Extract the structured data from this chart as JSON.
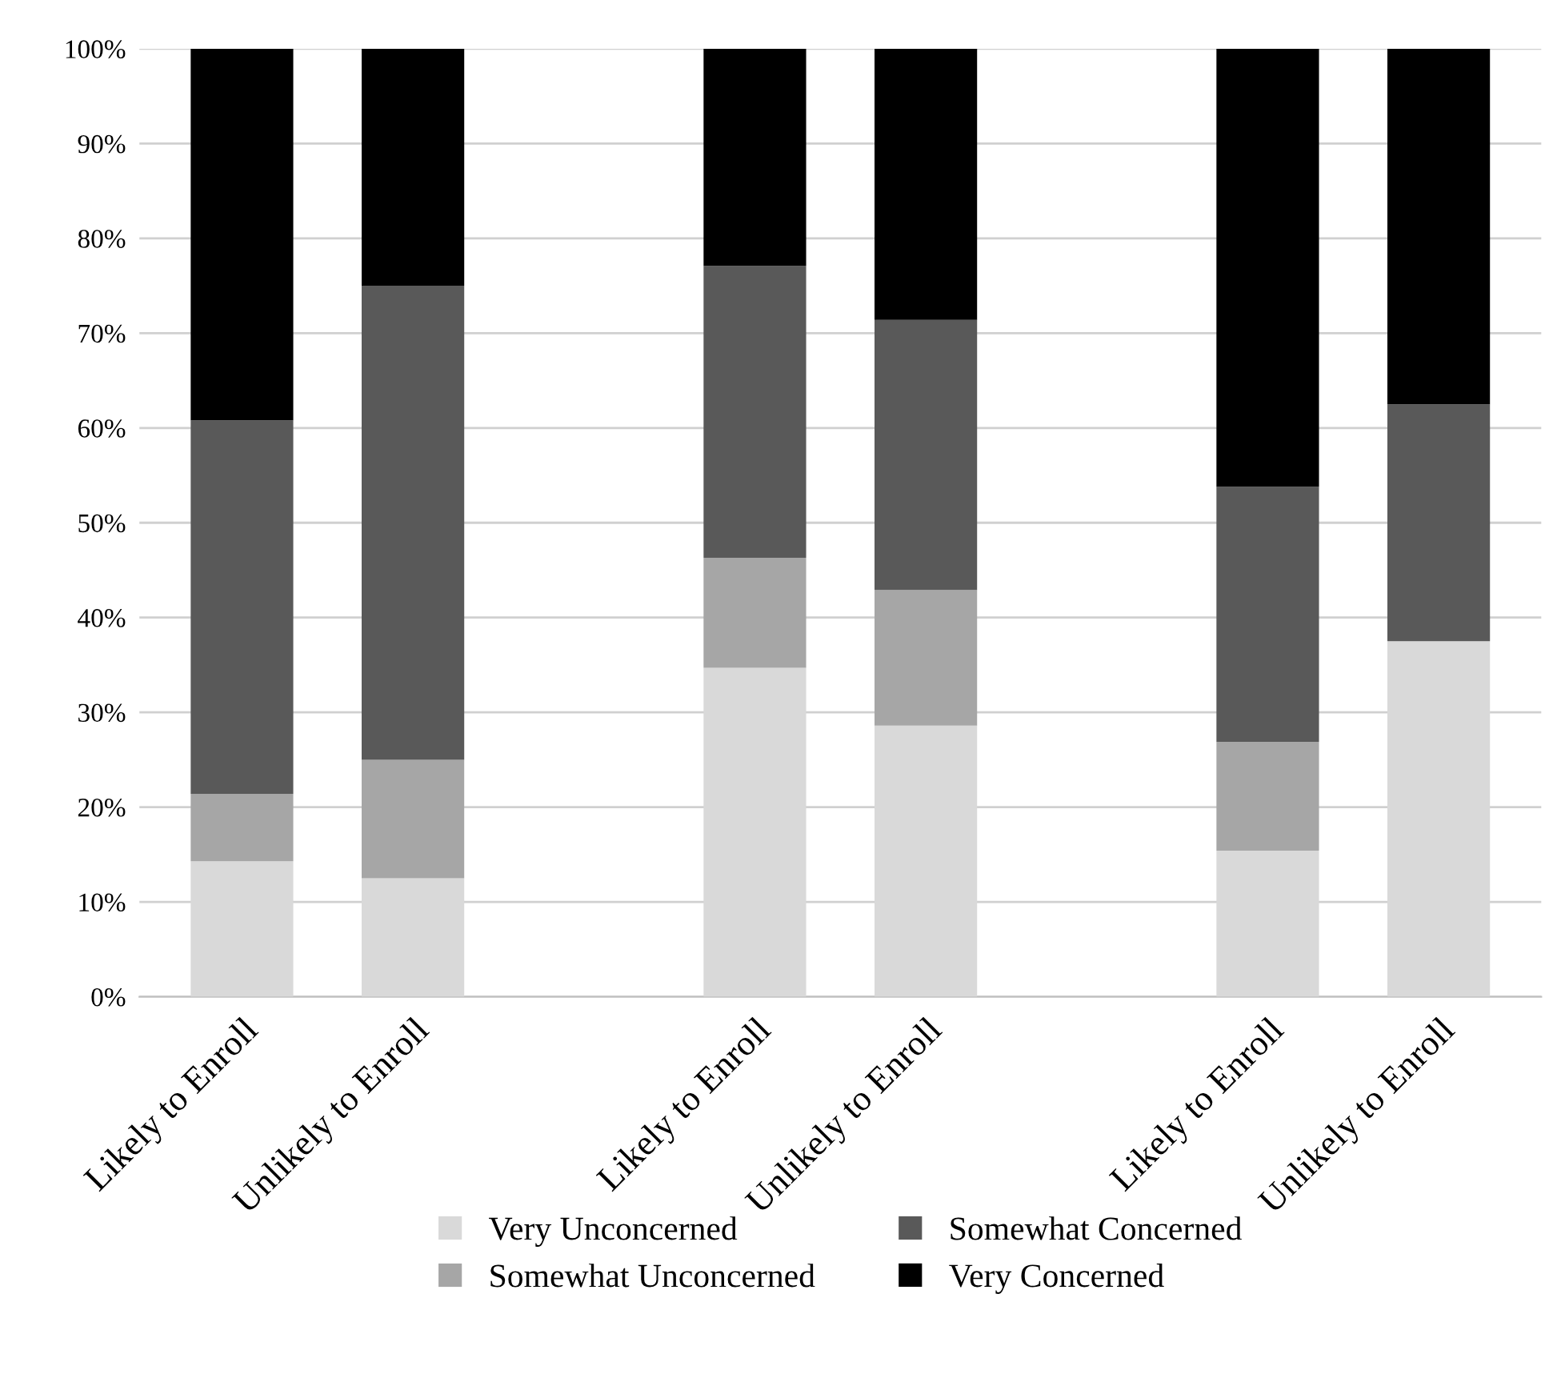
{
  "chart_data": {
    "type": "bar",
    "stacked": true,
    "categories": [
      "Likely to Enroll",
      "Unlikely to Enroll",
      null,
      "Likely to Enroll",
      "Unlikely to Enroll",
      null,
      "Likely to Enroll",
      "Unlikely to Enroll"
    ],
    "series": [
      {
        "name": "Very Unconcerned",
        "color": "#d9d9d9",
        "values": [
          14.3,
          12.5,
          null,
          34.7,
          28.6,
          null,
          15.4,
          37.5
        ]
      },
      {
        "name": "Somewhat Unconcerned",
        "color": "#a6a6a6",
        "values": [
          7.1,
          12.5,
          null,
          11.6,
          14.3,
          null,
          11.5,
          0
        ]
      },
      {
        "name": "Somewhat Concerned",
        "color": "#595959",
        "values": [
          39.4,
          50,
          null,
          30.8,
          28.5,
          null,
          26.9,
          25
        ]
      },
      {
        "name": "Very Concerned",
        "color": "#000000",
        "values": [
          39.2,
          25,
          null,
          22.9,
          28.6,
          null,
          46.2,
          37.5
        ]
      }
    ],
    "ylim": [
      0,
      100
    ],
    "yticks": [
      {
        "value": 0,
        "label": "0%"
      },
      {
        "value": 10,
        "label": "10%"
      },
      {
        "value": 20,
        "label": "20%"
      },
      {
        "value": 30,
        "label": "30%"
      },
      {
        "value": 40,
        "label": "40%"
      },
      {
        "value": 50,
        "label": "50%"
      },
      {
        "value": 60,
        "label": "60%"
      },
      {
        "value": 70,
        "label": "70%"
      },
      {
        "value": 80,
        "label": "80%"
      },
      {
        "value": 90,
        "label": "90%"
      },
      {
        "value": 100,
        "label": "100%"
      }
    ],
    "grid": "y",
    "legend": "bottom"
  }
}
